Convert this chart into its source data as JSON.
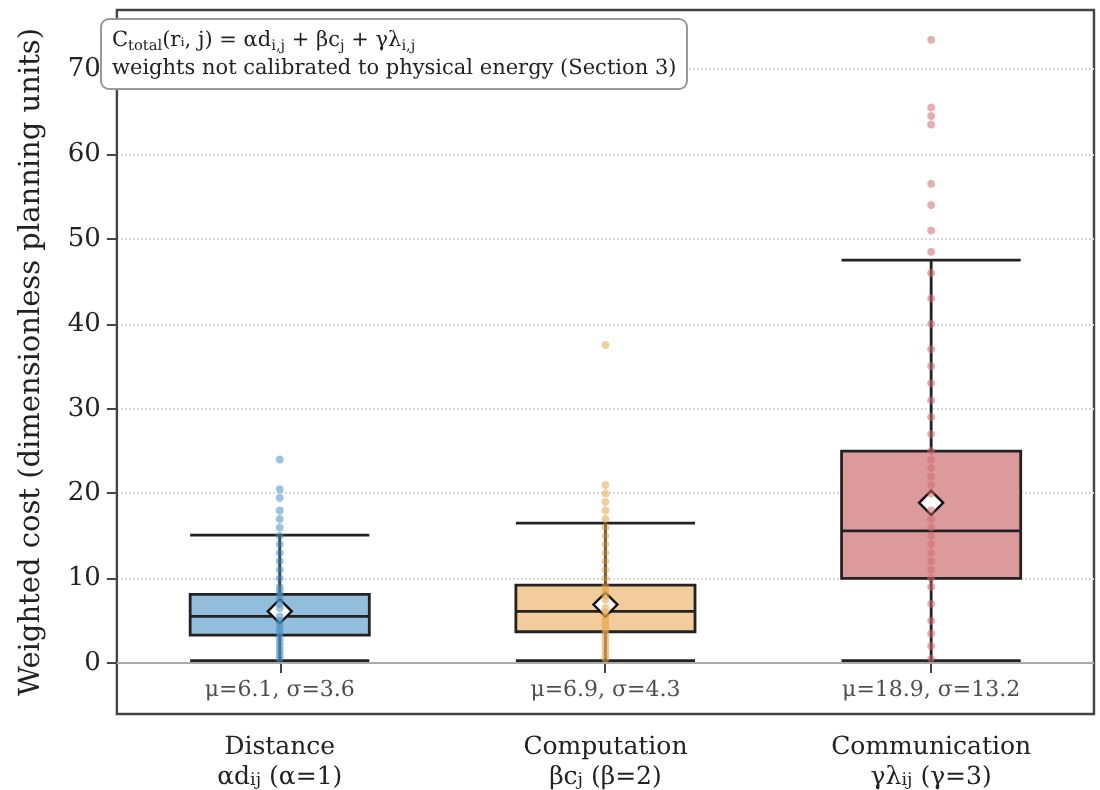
{
  "chart_data": {
    "type": "box",
    "ylabel": "Weighted cost (dimensionless planning units)",
    "categories": [
      "Distance\nαd$_{ij}$ (α=1)",
      "Computation\nβc$_{j}$ (β=2)",
      "Communication\nγλ$_{ij}$ (γ=3)"
    ],
    "boxes": [
      {
        "low": 0.3,
        "q1": 3.3,
        "median": 5.5,
        "q3": 8.1,
        "high": 15.1,
        "mean": 6.1
      },
      {
        "low": 0.3,
        "q1": 3.7,
        "median": 6.1,
        "q3": 9.2,
        "high": 16.5,
        "mean": 6.9
      },
      {
        "low": 0.3,
        "q1": 10,
        "median": 15.6,
        "q3": 25,
        "high": 47.5,
        "mean": 18.9
      }
    ],
    "colors": [
      "#93bddc",
      "#f2cc9a",
      "#dc9a9c"
    ],
    "series": [
      {
        "type": "scatter",
        "color": "#4a8fc4",
        "x": [
          "Distance\nαd$_{ij}$ (α=1)",
          "Distance\nαd$_{ij}$ (α=1)",
          "Distance\nαd$_{ij}$ (α=1)",
          "Distance\nαd$_{ij}$ (α=1)",
          "Distance\nαd$_{ij}$ (α=1)",
          "Distance\nαd$_{ij}$ (α=1)",
          "Distance\nαd$_{ij}$ (α=1)",
          "Distance\nαd$_{ij}$ (α=1)",
          "Distance\nαd$_{ij}$ (α=1)",
          "Distance\nαd$_{ij}$ (α=1)",
          "Distance\nαd$_{ij}$ (α=1)",
          "Distance\nαd$_{ij}$ (α=1)",
          "Distance\nαd$_{ij}$ (α=1)",
          "Distance\nαd$_{ij}$ (α=1)",
          "Distance\nαd$_{ij}$ (α=1)",
          "Distance\nαd$_{ij}$ (α=1)",
          "Distance\nαd$_{ij}$ (α=1)",
          "Distance\nαd$_{ij}$ (α=1)",
          "Distance\nαd$_{ij}$ (α=1)",
          "Distance\nαd$_{ij}$ (α=1)",
          "Distance\nαd$_{ij}$ (α=1)",
          "Distance\nαd$_{ij}$ (α=1)",
          "Distance\nαd$_{ij}$ (α=1)",
          "Distance\nαd$_{ij}$ (α=1)",
          "Distance\nαd$_{ij}$ (α=1)",
          "Distance\nαd$_{ij}$ (α=1)",
          "Distance\nαd$_{ij}$ (α=1)",
          "Distance\nαd$_{ij}$ (α=1)",
          "Distance\nαd$_{ij}$ (α=1)"
        ],
        "values": [
          0.5,
          1,
          1.5,
          2,
          2.5,
          3,
          3.5,
          4,
          4.5,
          5,
          5.5,
          6.5,
          7,
          7.5,
          8,
          8.5,
          9,
          10,
          11,
          12,
          13,
          14,
          15,
          16,
          17,
          18,
          19.5,
          20.5,
          24
        ]
      },
      {
        "type": "scatter",
        "color": "#e6a84c",
        "x": [
          "Computation\nβc$_{j}$ (β=2)",
          "Computation\nβc$_{j}$ (β=2)",
          "Computation\nβc$_{j}$ (β=2)",
          "Computation\nβc$_{j}$ (β=2)",
          "Computation\nβc$_{j}$ (β=2)",
          "Computation\nβc$_{j}$ (β=2)",
          "Computation\nβc$_{j}$ (β=2)",
          "Computation\nβc$_{j}$ (β=2)",
          "Computation\nβc$_{j}$ (β=2)",
          "Computation\nβc$_{j}$ (β=2)",
          "Computation\nβc$_{j}$ (β=2)",
          "Computation\nβc$_{j}$ (β=2)",
          "Computation\nβc$_{j}$ (β=2)",
          "Computation\nβc$_{j}$ (β=2)",
          "Computation\nβc$_{j}$ (β=2)",
          "Computation\nβc$_{j}$ (β=2)",
          "Computation\nβc$_{j}$ (β=2)",
          "Computation\nβc$_{j}$ (β=2)",
          "Computation\nβc$_{j}$ (β=2)",
          "Computation\nβc$_{j}$ (β=2)",
          "Computation\nβc$_{j}$ (β=2)",
          "Computation\nβc$_{j}$ (β=2)",
          "Computation\nβc$_{j}$ (β=2)",
          "Computation\nβc$_{j}$ (β=2)",
          "Computation\nβc$_{j}$ (β=2)",
          "Computation\nβc$_{j}$ (β=2)",
          "Computation\nβc$_{j}$ (β=2)",
          "Computation\nβc$_{j}$ (β=2)",
          "Computation\nβc$_{j}$ (β=2)",
          "Computation\nβc$_{j}$ (β=2)"
        ],
        "values": [
          0.5,
          1,
          1.5,
          2,
          2.5,
          3,
          3.5,
          4,
          4.5,
          5,
          5.5,
          6,
          6.5,
          7.5,
          8,
          8.5,
          9,
          10,
          11,
          12,
          13,
          14,
          15,
          16,
          17,
          18,
          19,
          20,
          21,
          37.5
        ]
      },
      {
        "type": "scatter",
        "color": "#d46a70",
        "x": [
          "Communication\nγλ$_{ij}$ (γ=3)",
          "Communication\nγλ$_{ij}$ (γ=3)",
          "Communication\nγλ$_{ij}$ (γ=3)",
          "Communication\nγλ$_{ij}$ (γ=3)",
          "Communication\nγλ$_{ij}$ (γ=3)",
          "Communication\nγλ$_{ij}$ (γ=3)",
          "Communication\nγλ$_{ij}$ (γ=3)",
          "Communication\nγλ$_{ij}$ (γ=3)",
          "Communication\nγλ$_{ij}$ (γ=3)",
          "Communication\nγλ$_{ij}$ (γ=3)",
          "Communication\nγλ$_{ij}$ (γ=3)",
          "Communication\nγλ$_{ij}$ (γ=3)",
          "Communication\nγλ$_{ij}$ (γ=3)",
          "Communication\nγλ$_{ij}$ (γ=3)",
          "Communication\nγλ$_{ij}$ (γ=3)",
          "Communication\nγλ$_{ij}$ (γ=3)",
          "Communication\nγλ$_{ij}$ (γ=3)",
          "Communication\nγλ$_{ij}$ (γ=3)",
          "Communication\nγλ$_{ij}$ (γ=3)",
          "Communication\nγλ$_{ij}$ (γ=3)",
          "Communication\nγλ$_{ij}$ (γ=3)",
          "Communication\nγλ$_{ij}$ (γ=3)",
          "Communication\nγλ$_{ij}$ (γ=3)",
          "Communication\nγλ$_{ij}$ (γ=3)",
          "Communication\nγλ$_{ij}$ (γ=3)",
          "Communication\nγλ$_{ij}$ (γ=3)",
          "Communication\nγλ$_{ij}$ (γ=3)",
          "Communication\nγλ$_{ij}$ (γ=3)",
          "Communication\nγλ$_{ij}$ (γ=3)",
          "Communication\nγλ$_{ij}$ (γ=3)",
          "Communication\nγλ$_{ij}$ (γ=3)",
          "Communication\nγλ$_{ij}$ (γ=3)",
          "Communication\nγλ$_{ij}$ (γ=3)",
          "Communication\nγλ$_{ij}$ (γ=3)",
          "Communication\nγλ$_{ij}$ (γ=3)",
          "Communication\nγλ$_{ij}$ (γ=3)",
          "Communication\nγλ$_{ij}$ (γ=3)",
          "Communication\nγλ$_{ij}$ (γ=3)"
        ],
        "values": [
          0.5,
          2,
          3.5,
          5,
          7,
          9,
          10,
          11,
          12,
          13,
          14,
          15,
          16,
          17,
          18,
          20,
          21,
          22,
          23,
          24,
          25,
          27,
          29,
          31,
          33,
          35,
          37,
          40,
          43,
          46,
          48.5,
          51,
          54,
          56.5,
          63.5,
          64.5,
          65.5,
          73.5
        ]
      }
    ],
    "ylim": [
      -6,
      77
    ],
    "yticks": [
      0,
      10,
      20,
      30,
      40,
      50,
      60,
      70
    ],
    "grid": "y",
    "ref_lines": [
      {
        "axis": "y",
        "value": 0,
        "color": "#aaaaaa"
      }
    ],
    "annotations": [
      "C$_{total}$(rᵢ, j) = αd$_{i,j}$ + βc$_{j}$ + γλ$_{i,j}$",
      "weights not calibrated to physical energy (Section 3)",
      "μ=6.1, σ=3.6",
      "μ=6.9, σ=4.3",
      "μ=18.9, σ=13.2"
    ]
  }
}
